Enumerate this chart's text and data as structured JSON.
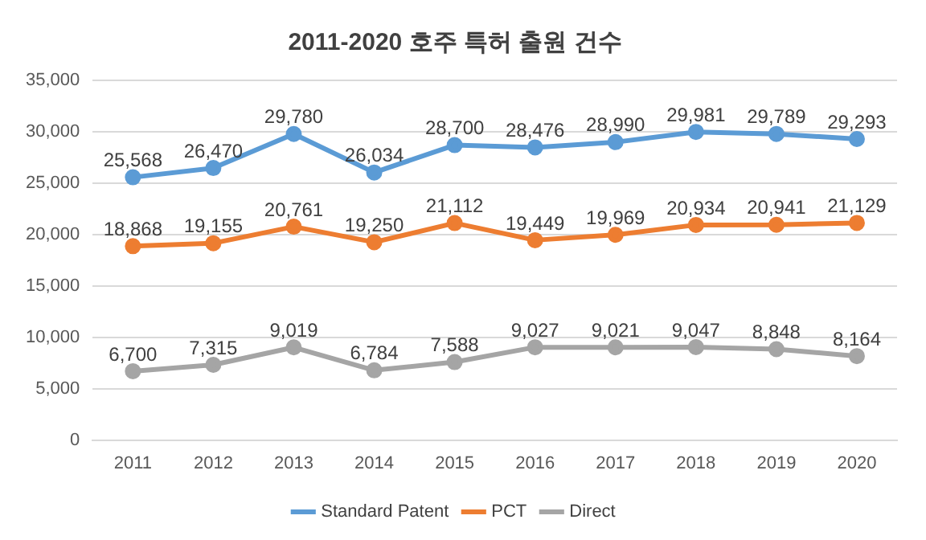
{
  "chart_data": {
    "type": "line",
    "title": "2011-2020 호주 특허 출원 건수",
    "categories": [
      "2011",
      "2012",
      "2013",
      "2014",
      "2015",
      "2016",
      "2017",
      "2018",
      "2019",
      "2020"
    ],
    "series": [
      {
        "name": "Standard Patent",
        "color": "#5b9bd5",
        "values": [
          25568,
          26470,
          29780,
          26034,
          28700,
          28476,
          28990,
          29981,
          29789,
          29293
        ],
        "value_labels": [
          "25,568",
          "26,470",
          "29,780",
          "26,034",
          "28,700",
          "28,476",
          "28,990",
          "29,981",
          "29,789",
          "29,293"
        ]
      },
      {
        "name": "PCT",
        "color": "#ed7d31",
        "values": [
          18868,
          19155,
          20761,
          19250,
          21112,
          19449,
          19969,
          20934,
          20941,
          21129
        ],
        "value_labels": [
          "18,868",
          "19,155",
          "20,761",
          "19,250",
          "21,112",
          "19,449",
          "19,969",
          "20,934",
          "20,941",
          "21,129"
        ]
      },
      {
        "name": "Direct",
        "color": "#a5a5a5",
        "values": [
          6700,
          7315,
          9019,
          6784,
          7588,
          9027,
          9021,
          9047,
          8848,
          8164
        ],
        "value_labels": [
          "6,700",
          "7,315",
          "9,019",
          "6,784",
          "7,588",
          "9,027",
          "9,021",
          "9,047",
          "8,848",
          "8,164"
        ]
      }
    ],
    "ylim": [
      0,
      35000
    ],
    "yticks": [
      {
        "value": 0,
        "label": "0"
      },
      {
        "value": 5000,
        "label": "5,000"
      },
      {
        "value": 10000,
        "label": "10,000"
      },
      {
        "value": 15000,
        "label": "15,000"
      },
      {
        "value": 20000,
        "label": "20,000"
      },
      {
        "value": 25000,
        "label": "25,000"
      },
      {
        "value": 30000,
        "label": "30,000"
      },
      {
        "value": 35000,
        "label": "35,000"
      }
    ],
    "grid": "y",
    "legend": "bottom",
    "marker": "circle",
    "line_style": "solid"
  }
}
